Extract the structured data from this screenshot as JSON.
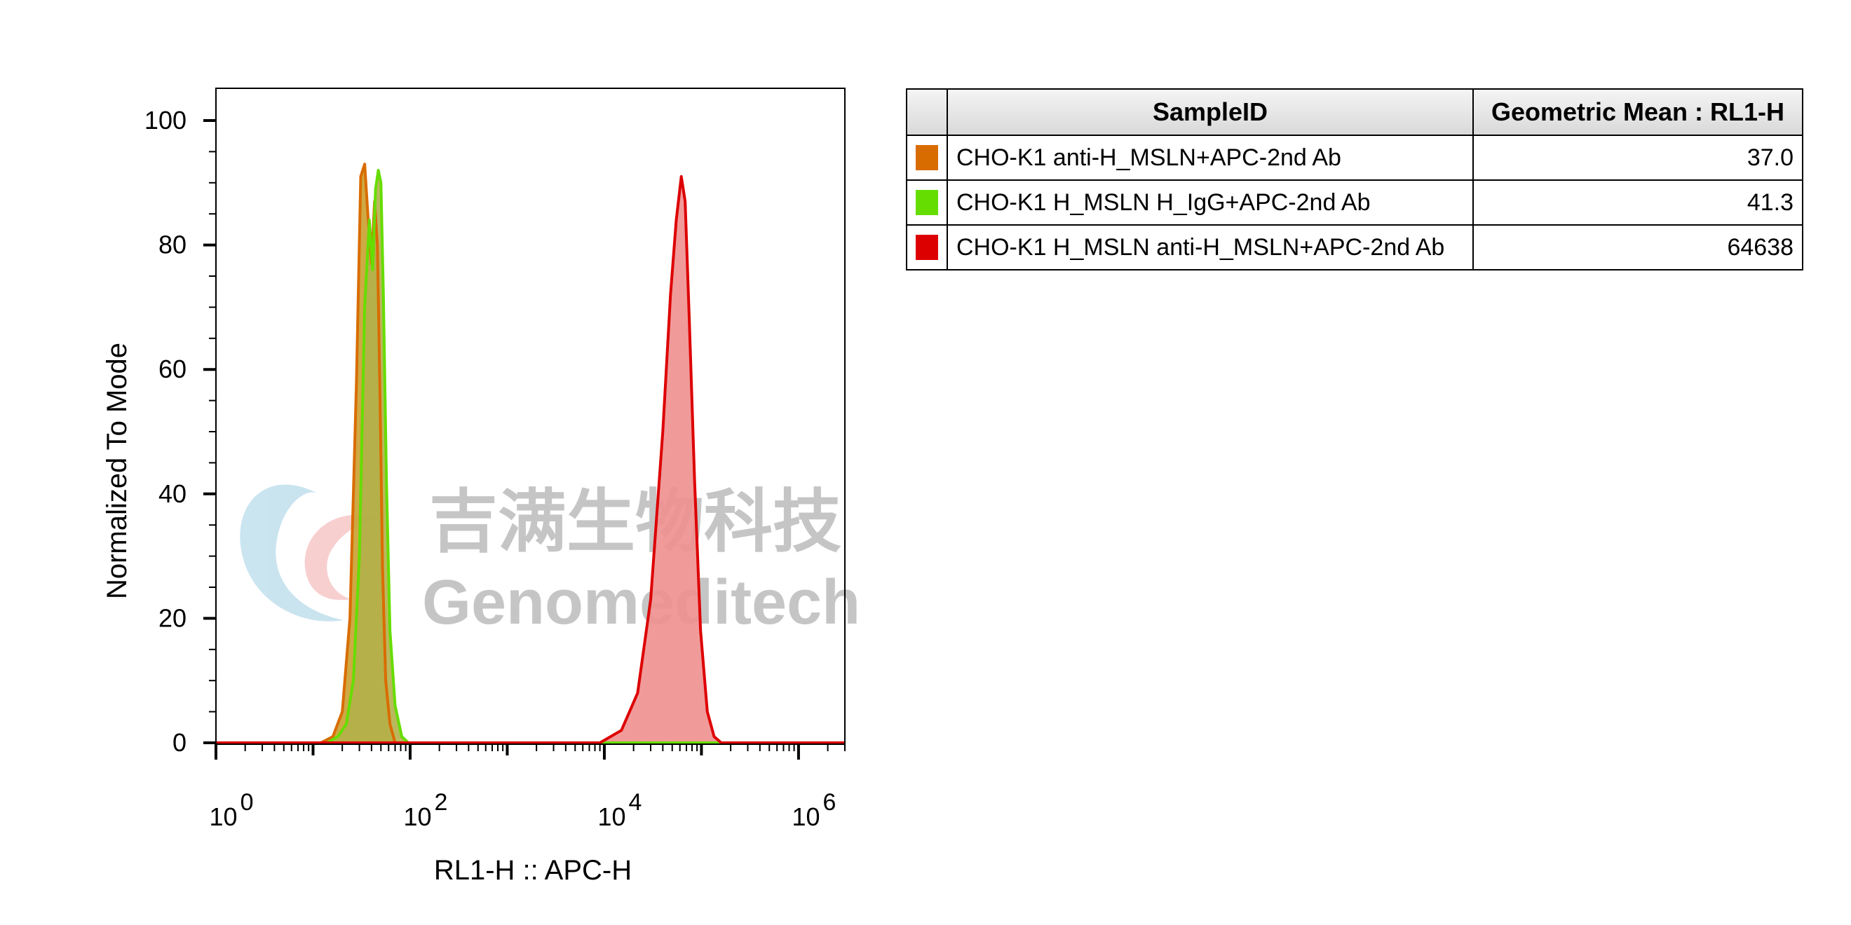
{
  "chart_data": {
    "type": "area",
    "title": "",
    "xlabel": "RL1-H :: APC-H",
    "ylabel": "Normalized To Mode",
    "x_scale": "log",
    "xlim": [
      1,
      3000000
    ],
    "ylim": [
      0,
      100
    ],
    "x_tick_labels": [
      {
        "value": 1,
        "base": "10",
        "exp": "0"
      },
      {
        "value": 100,
        "base": "10",
        "exp": "2"
      },
      {
        "value": 10000,
        "base": "10",
        "exp": "4"
      },
      {
        "value": 1000000,
        "base": "10",
        "exp": "6"
      }
    ],
    "y_ticks": [
      "0",
      "20",
      "40",
      "60",
      "80",
      "100"
    ],
    "grid": false,
    "legend_placement": "right",
    "series": [
      {
        "name": "CHO-K1 anti-H_MSLN+APC-2nd Ab",
        "color": "#d96c00",
        "fill": "#c9a030",
        "x": [
          1,
          12,
          16,
          20,
          24,
          28,
          31,
          34,
          37,
          40,
          43,
          46,
          49,
          52,
          56,
          62,
          70,
          3000000
        ],
        "y": [
          0,
          0,
          1,
          5,
          20,
          58,
          91,
          93,
          84,
          77,
          87,
          80,
          55,
          28,
          10,
          3,
          0,
          0
        ]
      },
      {
        "name": "CHO-K1 H_MSLN H_IgG+APC-2nd Ab",
        "color": "#66dd00",
        "fill": "#b3b04a",
        "x": [
          1,
          14,
          18,
          22,
          26,
          30,
          34,
          38,
          41,
          44,
          47,
          50,
          53,
          57,
          62,
          70,
          82,
          96,
          3000000
        ],
        "y": [
          0,
          0,
          1,
          3,
          10,
          30,
          70,
          84,
          76,
          89,
          92,
          90,
          72,
          42,
          18,
          6,
          1,
          0,
          0
        ]
      },
      {
        "name": "CHO-K1 H_MSLN anti-H_MSLN+APC-2nd Ab",
        "color": "#dd0000",
        "fill": "#f08f8f",
        "x": [
          1,
          9000,
          15000,
          22000,
          30000,
          40000,
          48000,
          55000,
          62000,
          68000,
          75000,
          85000,
          98000,
          115000,
          135000,
          160000,
          3000000
        ],
        "y": [
          0,
          0,
          2,
          8,
          23,
          50,
          72,
          84,
          91,
          87,
          68,
          42,
          18,
          5,
          1,
          0,
          0
        ]
      }
    ]
  },
  "table": {
    "header_sample": "SampleID",
    "header_mean": "Geometric Mean : RL1-H",
    "rows": [
      {
        "name": "CHO-K1 anti-H_MSLN+APC-2nd Ab",
        "value": "37.0",
        "color": "#d96c00"
      },
      {
        "name": "CHO-K1 H_MSLN H_IgG+APC-2nd Ab",
        "value": "41.3",
        "color": "#66dd00"
      },
      {
        "name": "CHO-K1 H_MSLN anti-H_MSLN+APC-2nd Ab",
        "value": "64638",
        "color": "#dd0000"
      }
    ]
  },
  "watermark": {
    "cn_text": "吉满生物科技",
    "en_text": "Genomeditech"
  }
}
